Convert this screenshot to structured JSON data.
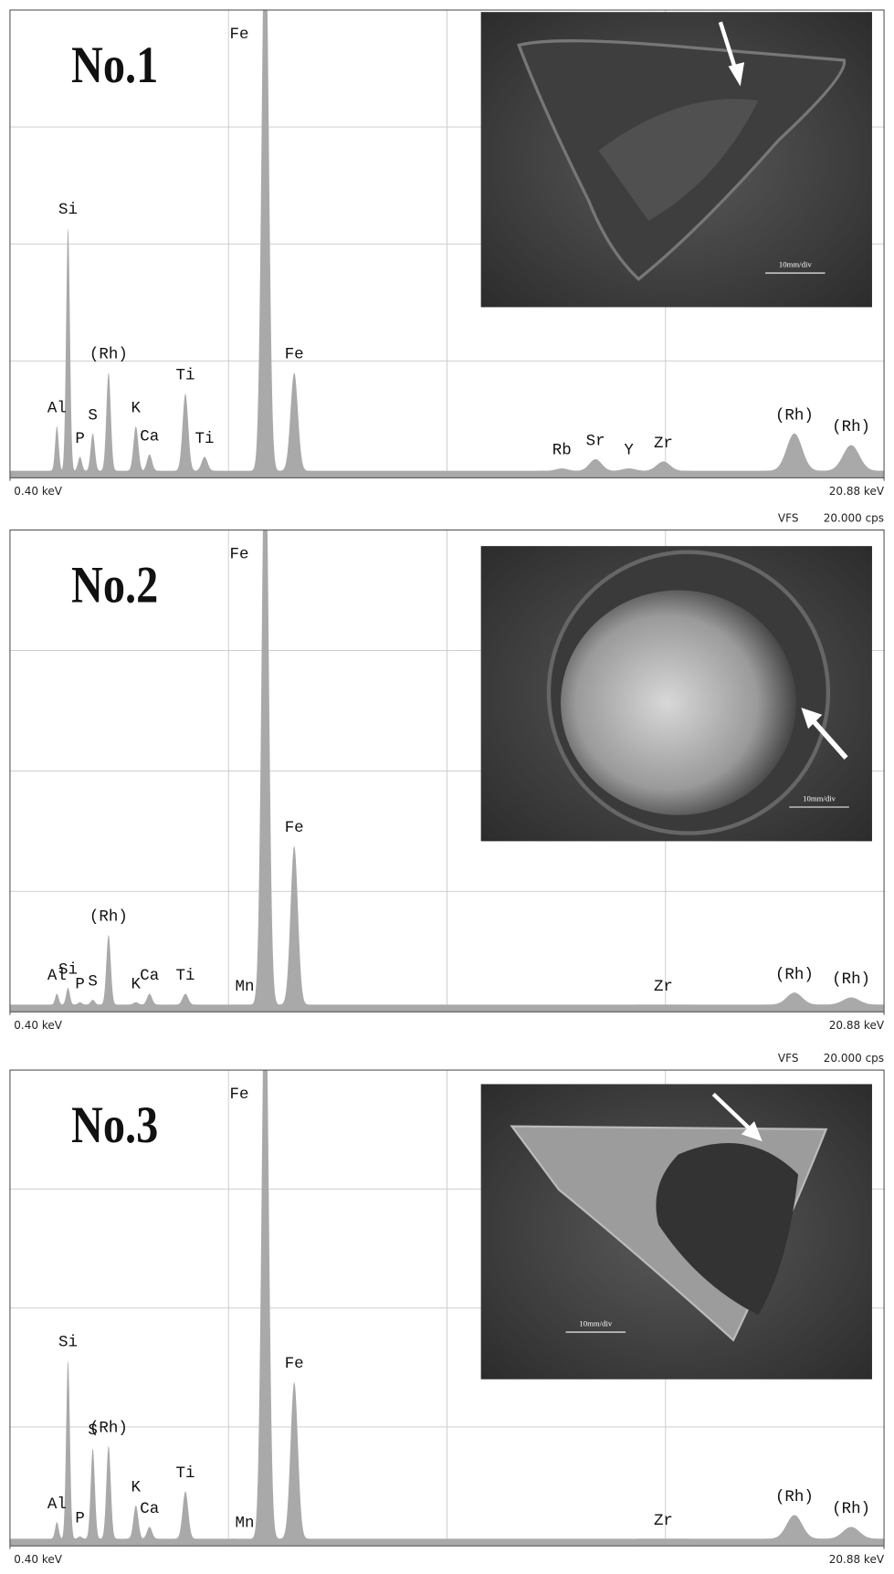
{
  "chart_data": [
    {
      "type": "spectrum",
      "title": "No.1",
      "xlim": [
        0.4,
        20.88
      ],
      "ylim": [
        0,
        20
      ],
      "xticks": [
        {
          "value": 0.4,
          "label": "0.40 keV"
        },
        {
          "value": 20.88,
          "label": "20.88 keV"
        }
      ],
      "grid_divisions": 4,
      "color": "#a9a9a9",
      "background": 0.3,
      "peaks": [
        {
          "label": "Al",
          "x": 1.5,
          "y": 2.2
        },
        {
          "label": "Si",
          "x": 1.76,
          "y": 10.7
        },
        {
          "label": "P",
          "x": 2.04,
          "y": 0.9
        },
        {
          "label": "S",
          "x": 2.34,
          "y": 1.9
        },
        {
          "label": "(Rh)",
          "x": 2.71,
          "y": 4.5
        },
        {
          "label": "K",
          "x": 3.35,
          "y": 2.2
        },
        {
          "label": "Ca",
          "x": 3.67,
          "y": 1.0
        },
        {
          "label": "Ti",
          "x": 4.51,
          "y": 3.6
        },
        {
          "label": "Ti",
          "x": 4.96,
          "y": 0.9
        },
        {
          "label": "Fe",
          "x": 6.38,
          "y": 25
        },
        {
          "label": "Fe",
          "x": 7.06,
          "y": 4.5
        },
        {
          "label": "Rb",
          "x": 13.33,
          "y": 0.4
        },
        {
          "label": "Sr",
          "x": 14.12,
          "y": 0.8
        },
        {
          "label": "Y",
          "x": 14.9,
          "y": 0.4
        },
        {
          "label": "Zr",
          "x": 15.71,
          "y": 0.7
        },
        {
          "label": "(Rh)",
          "x": 18.78,
          "y": 1.9
        },
        {
          "label": "(Rh)",
          "x": 20.11,
          "y": 1.4
        }
      ],
      "photo": {
        "scale_label": "10mm/div"
      }
    },
    {
      "type": "spectrum",
      "title": "No.2",
      "xlim": [
        0.4,
        20.88
      ],
      "ylim": [
        0,
        20
      ],
      "xticks": [
        {
          "value": 0.4,
          "label": "0.40 keV"
        },
        {
          "value": 20.88,
          "label": "20.88 keV"
        }
      ],
      "ylabel": "VFS",
      "yticks": [
        {
          "value": 20,
          "label": "20.000 cps"
        }
      ],
      "grid_divisions": 4,
      "color": "#a9a9a9",
      "background": 0.3,
      "peaks": [
        {
          "label": "Al",
          "x": 1.5,
          "y": 0.75
        },
        {
          "label": "Si",
          "x": 1.76,
          "y": 1.0
        },
        {
          "label": "P",
          "x": 2.04,
          "y": 0.4
        },
        {
          "label": "S",
          "x": 2.34,
          "y": 0.5
        },
        {
          "label": "(Rh)",
          "x": 2.71,
          "y": 3.2
        },
        {
          "label": "K",
          "x": 3.35,
          "y": 0.4
        },
        {
          "label": "Ca",
          "x": 3.67,
          "y": 0.75
        },
        {
          "label": "Ti",
          "x": 4.51,
          "y": 0.75
        },
        {
          "label": "Mn",
          "x": 5.9,
          "y": 0.3
        },
        {
          "label": "Fe",
          "x": 6.38,
          "y": 25
        },
        {
          "label": "Fe",
          "x": 7.06,
          "y": 6.9
        },
        {
          "label": "Zr",
          "x": 15.71,
          "y": 0.3
        },
        {
          "label": "(Rh)",
          "x": 18.78,
          "y": 0.8
        },
        {
          "label": "(Rh)",
          "x": 20.11,
          "y": 0.6
        }
      ],
      "photo": {
        "scale_label": "10mm/div"
      }
    },
    {
      "type": "spectrum",
      "title": "No.3",
      "xlim": [
        0.4,
        20.88
      ],
      "ylim": [
        0,
        20
      ],
      "xticks": [
        {
          "value": 0.4,
          "label": "0.40 keV"
        },
        {
          "value": 20.88,
          "label": "20.88 keV"
        }
      ],
      "ylabel": "VFS",
      "yticks": [
        {
          "value": 20,
          "label": "20.000 cps"
        }
      ],
      "grid_divisions": 4,
      "color": "#a9a9a9",
      "background": 0.3,
      "peaks": [
        {
          "label": "Al",
          "x": 1.5,
          "y": 1.0
        },
        {
          "label": "Si",
          "x": 1.76,
          "y": 7.8
        },
        {
          "label": "P",
          "x": 2.04,
          "y": 0.4
        },
        {
          "label": "S",
          "x": 2.34,
          "y": 4.1
        },
        {
          "label": "(Rh)",
          "x": 2.71,
          "y": 4.2
        },
        {
          "label": "K",
          "x": 3.35,
          "y": 1.7
        },
        {
          "label": "Ca",
          "x": 3.67,
          "y": 0.8
        },
        {
          "label": "Ti",
          "x": 4.51,
          "y": 2.3
        },
        {
          "label": "Mn",
          "x": 5.9,
          "y": 0.2
        },
        {
          "label": "Fe",
          "x": 6.38,
          "y": 25
        },
        {
          "label": "Fe",
          "x": 7.06,
          "y": 6.9
        },
        {
          "label": "Zr",
          "x": 15.71,
          "y": 0.3
        },
        {
          "label": "(Rh)",
          "x": 18.78,
          "y": 1.3
        },
        {
          "label": "(Rh)",
          "x": 20.11,
          "y": 0.8
        }
      ],
      "photo": {
        "scale_label": "10mm/div"
      }
    }
  ]
}
